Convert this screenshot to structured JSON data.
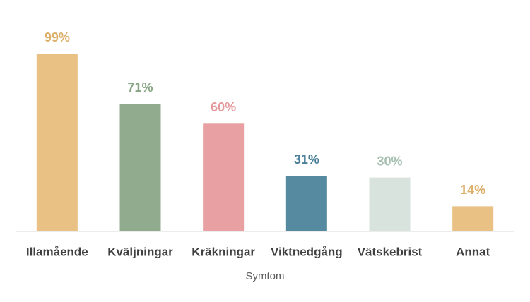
{
  "chart_data": {
    "type": "bar",
    "categories": [
      "Illamående",
      "Kväljningar",
      "Kräkningar",
      "Viktnedgång",
      "Vätskebrist",
      "Annat"
    ],
    "values": [
      99,
      71,
      60,
      31,
      30,
      14
    ],
    "value_labels": [
      "99%",
      "71%",
      "60%",
      "31%",
      "30%",
      "14%"
    ],
    "colors": [
      "#e9c184",
      "#91ab8f",
      "#e8a0a2",
      "#558aa0",
      "#d7e3dc",
      "#e9c184"
    ],
    "label_colors": [
      "#dcb06a",
      "#86a583",
      "#e59a9c",
      "#4a7f98",
      "#a6bfb1",
      "#dcb06a"
    ],
    "x_label": "Symtom"
  }
}
